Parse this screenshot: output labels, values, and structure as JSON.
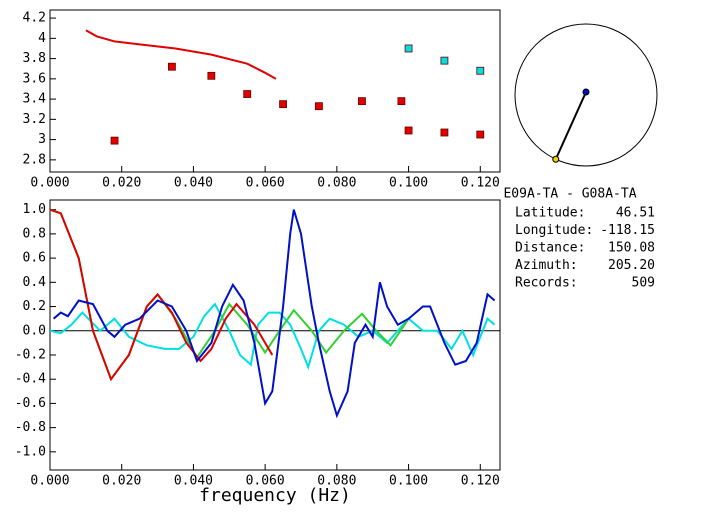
{
  "chart_data": [
    {
      "type": "scatter",
      "xlim": [
        0,
        0.1255
      ],
      "ylim": [
        2.68,
        4.28
      ],
      "xticks": [
        {
          "value": 0,
          "label": "0.000"
        },
        {
          "value": 0.02,
          "label": "0.020"
        },
        {
          "value": 0.04,
          "label": "0.040"
        },
        {
          "value": 0.06,
          "label": "0.060"
        },
        {
          "value": 0.08,
          "label": "0.080"
        },
        {
          "value": 0.1,
          "label": "0.100"
        },
        {
          "value": 0.12,
          "label": "0.120"
        }
      ],
      "yticks": [
        2.8,
        3,
        3.2,
        3.4,
        3.6,
        3.8,
        4,
        4.2
      ],
      "series": [
        {
          "mode": "marker",
          "color": "#e00000",
          "x": [
            0.018,
            0.034,
            0.045,
            0.055,
            0.065,
            0.075,
            0.087,
            0.098,
            0.1,
            0.11,
            0.12
          ],
          "values": [
            2.99,
            3.72,
            3.63,
            3.45,
            3.35,
            3.33,
            3.38,
            3.38,
            3.09,
            3.07,
            3.05
          ]
        },
        {
          "mode": "marker",
          "color": "#00e0e0",
          "x": [
            0.1,
            0.11,
            0.12
          ],
          "values": [
            3.9,
            3.78,
            3.68
          ]
        },
        {
          "mode": "line",
          "color": "#e00000",
          "x": [
            0.01,
            0.013,
            0.018,
            0.025,
            0.035,
            0.045,
            0.055,
            0.06,
            0.063
          ],
          "values": [
            4.08,
            4.02,
            3.97,
            3.94,
            3.9,
            3.84,
            3.75,
            3.66,
            3.6
          ]
        }
      ]
    },
    {
      "type": "line",
      "xlabel": "frequency (Hz)",
      "xlim": [
        0,
        0.1255
      ],
      "ylim": [
        -1.15,
        1.08
      ],
      "xticks": [
        {
          "value": 0,
          "label": "0.000"
        },
        {
          "value": 0.02,
          "label": "0.020"
        },
        {
          "value": 0.04,
          "label": "0.040"
        },
        {
          "value": 0.06,
          "label": "0.060"
        },
        {
          "value": 0.08,
          "label": "0.080"
        },
        {
          "value": 0.1,
          "label": "0.100"
        },
        {
          "value": 0.12,
          "label": "0.120"
        }
      ],
      "yticks": [
        {
          "value": -1,
          "label": "-1.0"
        },
        {
          "value": -0.8,
          "label": "-0.8"
        },
        {
          "value": -0.6,
          "label": "-0.6"
        },
        {
          "value": -0.4,
          "label": "-0.4"
        },
        {
          "value": -0.2,
          "label": "-0.2"
        },
        {
          "value": 0,
          "label": "0.0"
        },
        {
          "value": 0.2,
          "label": "0.2"
        },
        {
          "value": 0.4,
          "label": "0.4"
        },
        {
          "value": 0.6,
          "label": "0.6"
        },
        {
          "value": 0.8,
          "label": "0.8"
        },
        {
          "value": 1,
          "label": "1.0"
        }
      ],
      "zero_line": true,
      "series": [
        {
          "color": "#00e0e0",
          "x": [
            0,
            0.003,
            0.006,
            0.009,
            0.014,
            0.018,
            0.022,
            0.027,
            0.032,
            0.036,
            0.04,
            0.043,
            0.046,
            0.05,
            0.053,
            0.056,
            0.058,
            0.061,
            0.064,
            0.067,
            0.07,
            0.072,
            0.075,
            0.078,
            0.082,
            0.086,
            0.09,
            0.094,
            0.097,
            0.1,
            0.104,
            0.108,
            0.112,
            0.115,
            0.118,
            0.122,
            0.124
          ],
          "values": [
            0,
            -0.02,
            0.05,
            0.15,
            0,
            0.1,
            -0.05,
            -0.12,
            -0.15,
            -0.15,
            -0.05,
            0.12,
            0.22,
            0,
            -0.2,
            -0.28,
            0.05,
            0.15,
            0.15,
            0.05,
            -0.15,
            -0.3,
            0,
            0.1,
            0.05,
            -0.05,
            0,
            -0.1,
            0,
            0.1,
            0,
            0,
            -0.15,
            0,
            -0.2,
            0.1,
            0.05
          ]
        },
        {
          "color": "#30d030",
          "x": [
            0,
            0.003,
            0.008,
            0.012,
            0.017,
            0.022,
            0.027,
            0.03,
            0.035,
            0.041,
            0.046,
            0.05,
            0.055,
            0.06,
            0.064,
            0.068,
            0.073,
            0.077,
            0.082,
            0.087,
            0.091,
            0.095,
            0.1
          ],
          "values": [
            1,
            0.97,
            0.6,
            0,
            -0.4,
            -0.2,
            0.2,
            0.3,
            0.1,
            -0.22,
            0,
            0.22,
            0.05,
            -0.18,
            0,
            0.17,
            0,
            -0.18,
            0,
            0.14,
            0,
            -0.12,
            0.1
          ]
        },
        {
          "color": "#e00000",
          "x": [
            0,
            0.003,
            0.008,
            0.012,
            0.017,
            0.022,
            0.027,
            0.03,
            0.034,
            0.038,
            0.042,
            0.045,
            0.049,
            0.052,
            0.057,
            0.062
          ],
          "values": [
            1,
            0.97,
            0.6,
            0,
            -0.4,
            -0.2,
            0.2,
            0.3,
            0.15,
            -0.1,
            -0.25,
            -0.15,
            0.1,
            0.22,
            0.05,
            -0.2
          ]
        },
        {
          "color": "#0010c8",
          "x": [
            0.001,
            0.003,
            0.005,
            0.008,
            0.012,
            0.016,
            0.018,
            0.021,
            0.025,
            0.03,
            0.034,
            0.038,
            0.041,
            0.045,
            0.048,
            0.051,
            0.054,
            0.057,
            0.06,
            0.062,
            0.065,
            0.067,
            0.068,
            0.07,
            0.073,
            0.075,
            0.078,
            0.08,
            0.083,
            0.085,
            0.088,
            0.09,
            0.092,
            0.094,
            0.097,
            0.1,
            0.104,
            0.106,
            0.108,
            0.11,
            0.113,
            0.116,
            0.119,
            0.122,
            0.124
          ],
          "values": [
            0.1,
            0.15,
            0.12,
            0.25,
            0.22,
            0,
            -0.05,
            0.05,
            0.1,
            0.25,
            0.2,
            0,
            -0.25,
            -0.1,
            0.2,
            0.38,
            0.25,
            -0.1,
            -0.6,
            -0.5,
            0.2,
            0.8,
            1,
            0.8,
            0.2,
            -0.1,
            -0.5,
            -0.7,
            -0.5,
            -0.1,
            0.05,
            -0.05,
            0.4,
            0.2,
            0.05,
            0.1,
            0.2,
            0.2,
            0.05,
            -0.1,
            -0.28,
            -0.25,
            -0.1,
            0.3,
            0.25
          ]
        }
      ]
    }
  ],
  "station": {
    "title": "E09A-TA - G08A-TA",
    "rows": [
      [
        "Latitude:",
        "46.51"
      ],
      [
        "Longitude:",
        "-118.15"
      ],
      [
        "Distance:",
        "150.08"
      ],
      [
        "Azimuth:",
        "205.20"
      ],
      [
        "Records:",
        "509"
      ]
    ]
  }
}
